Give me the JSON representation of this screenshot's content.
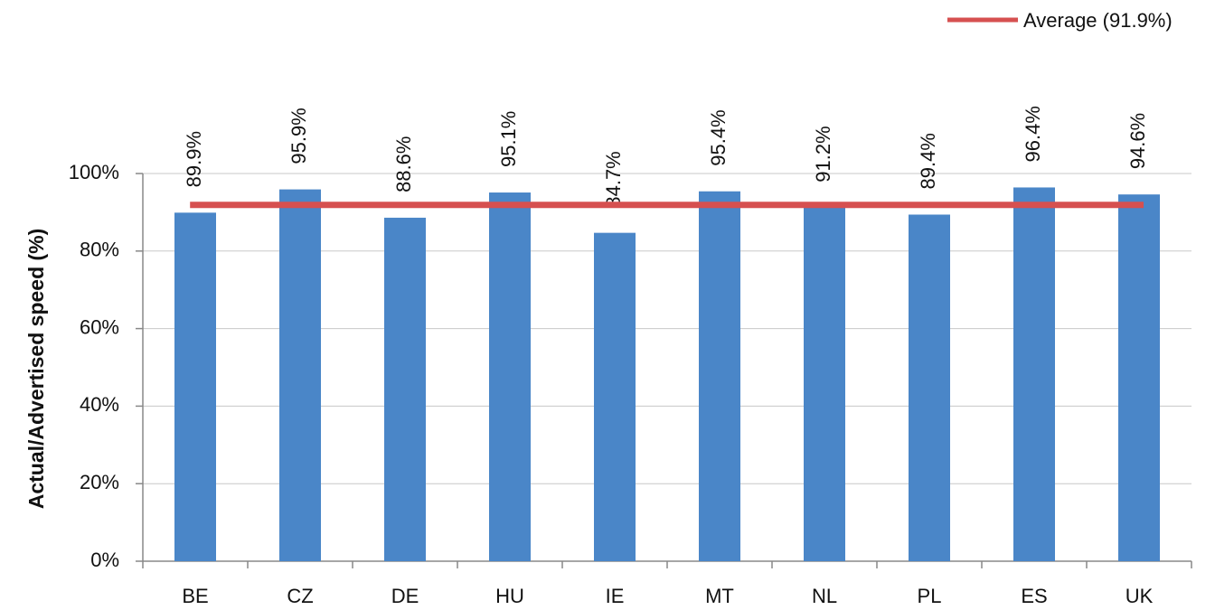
{
  "chart_data": {
    "type": "bar",
    "y_label": "Actual/Advertised speed (%)",
    "categories": [
      "BE",
      "CZ",
      "DE",
      "HU",
      "IE",
      "MT",
      "NL",
      "PL",
      "ES",
      "UK"
    ],
    "values": [
      89.9,
      95.9,
      88.6,
      95.1,
      84.7,
      95.4,
      91.2,
      89.4,
      96.4,
      94.6
    ],
    "value_labels": [
      "89.9%",
      "95.9%",
      "88.6%",
      "95.1%",
      "84.7%",
      "95.4%",
      "91.2%",
      "89.4%",
      "96.4%",
      "94.6%"
    ],
    "color": "#4a86c8",
    "average": {
      "name": "Average (91.9%)",
      "value": 91.9,
      "color": "#d65050"
    },
    "ylim": [
      0,
      100
    ],
    "yticks": [
      {
        "value": 0,
        "label": "0%"
      },
      {
        "value": 20,
        "label": "20%"
      },
      {
        "value": 40,
        "label": "40%"
      },
      {
        "value": 60,
        "label": "60%"
      },
      {
        "value": 80,
        "label": "80%"
      },
      {
        "value": 100,
        "label": "100%"
      }
    ],
    "grid": true,
    "legend": "top-right"
  }
}
